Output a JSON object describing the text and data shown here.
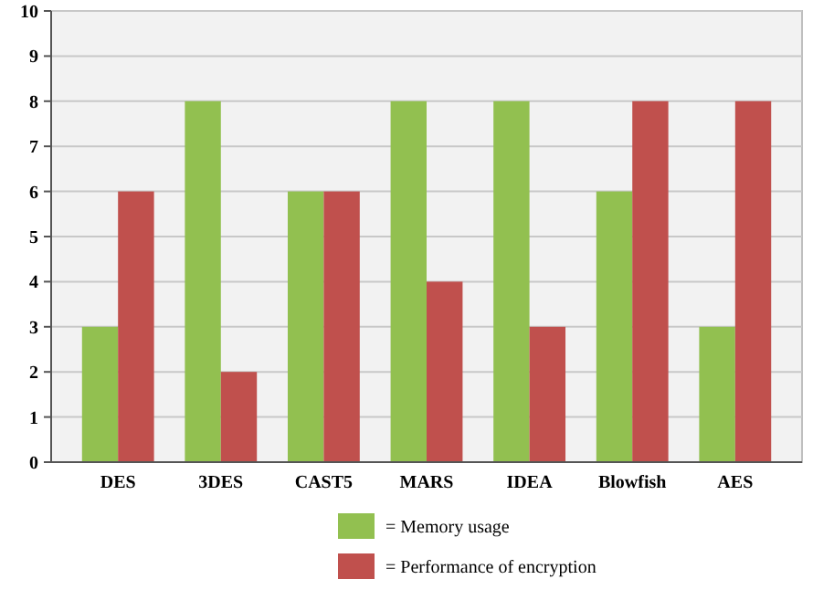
{
  "chart_data": {
    "type": "bar",
    "categories": [
      "DES",
      "3DES",
      "CAST5",
      "MARS",
      "IDEA",
      "Blowfish",
      "AES"
    ],
    "series": [
      {
        "name": "= Memory usage",
        "color": "#92c050",
        "values": [
          3,
          8,
          6,
          8,
          8,
          6,
          3
        ]
      },
      {
        "name": "= Performance of encryption",
        "color": "#c0504d",
        "values": [
          6,
          2,
          6,
          4,
          3,
          8,
          8
        ]
      }
    ],
    "ylim": [
      0,
      10
    ],
    "yticks": [
      0,
      1,
      2,
      3,
      4,
      5,
      6,
      7,
      8,
      9,
      10
    ],
    "grid": "y",
    "legend": "bottom"
  }
}
